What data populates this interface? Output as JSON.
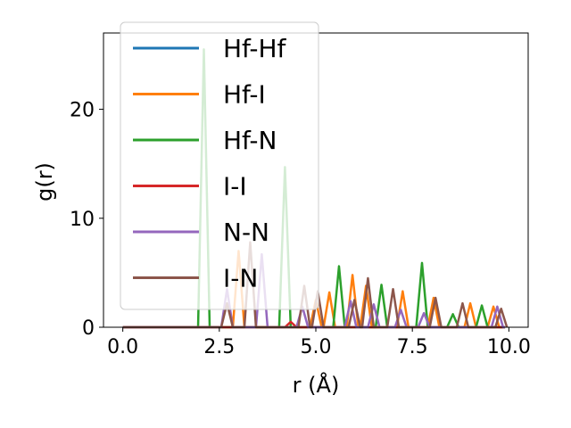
{
  "chart_data": {
    "type": "line",
    "title": "",
    "xlabel": "r (Å)",
    "ylabel": "g(r)",
    "xlim": [
      -0.5,
      10.5
    ],
    "ylim": [
      0,
      27
    ],
    "xticks": [
      0.0,
      2.5,
      5.0,
      7.5,
      10.0
    ],
    "xtick_labels": [
      "0.0",
      "2.5",
      "5.0",
      "7.5",
      "10.0"
    ],
    "yticks": [
      0,
      10,
      20
    ],
    "ytick_labels": [
      "0",
      "10",
      "20"
    ],
    "grid": false,
    "legend_position": "top-left",
    "series": [
      {
        "name": "Hf-Hf",
        "color": "#1f77b4",
        "points": [
          [
            0,
            0
          ],
          [
            9.9,
            0
          ]
        ]
      },
      {
        "name": "Hf-I",
        "color": "#ff7f0e",
        "points": [
          [
            0,
            0
          ],
          [
            2.85,
            0
          ],
          [
            3.0,
            7.0
          ],
          [
            3.15,
            0
          ],
          [
            4.85,
            0
          ],
          [
            5.0,
            2.5
          ],
          [
            5.15,
            0
          ],
          [
            5.2,
            0
          ],
          [
            5.35,
            3.2
          ],
          [
            5.5,
            0
          ],
          [
            5.8,
            0
          ],
          [
            5.95,
            4.8
          ],
          [
            6.1,
            0
          ],
          [
            6.15,
            0
          ],
          [
            6.3,
            3.8
          ],
          [
            6.45,
            0
          ],
          [
            7.1,
            0
          ],
          [
            7.25,
            3.3
          ],
          [
            7.4,
            0
          ],
          [
            7.9,
            0
          ],
          [
            8.05,
            2.7
          ],
          [
            8.2,
            0
          ],
          [
            8.85,
            0
          ],
          [
            9.0,
            2.2
          ],
          [
            9.15,
            0
          ],
          [
            9.45,
            0
          ],
          [
            9.6,
            1.9
          ],
          [
            9.75,
            0
          ],
          [
            9.9,
            0
          ]
        ]
      },
      {
        "name": "Hf-N",
        "color": "#2ca02c",
        "points": [
          [
            0,
            0
          ],
          [
            1.95,
            0
          ],
          [
            2.1,
            25.5
          ],
          [
            2.25,
            0
          ],
          [
            4.05,
            0
          ],
          [
            4.2,
            14.7
          ],
          [
            4.35,
            0
          ],
          [
            5.45,
            0
          ],
          [
            5.6,
            5.6
          ],
          [
            5.75,
            0
          ],
          [
            6.55,
            0
          ],
          [
            6.7,
            3.9
          ],
          [
            6.85,
            0
          ],
          [
            7.6,
            0
          ],
          [
            7.75,
            5.9
          ],
          [
            7.9,
            0
          ],
          [
            8.4,
            0
          ],
          [
            8.55,
            1.2
          ],
          [
            8.7,
            0
          ],
          [
            9.15,
            0
          ],
          [
            9.3,
            2.0
          ],
          [
            9.45,
            0
          ],
          [
            9.9,
            0
          ]
        ]
      },
      {
        "name": "I-I",
        "color": "#d62728",
        "points": [
          [
            0,
            0
          ],
          [
            4.2,
            0
          ],
          [
            4.35,
            0.5
          ],
          [
            4.5,
            0
          ],
          [
            9.9,
            0
          ]
        ]
      },
      {
        "name": "N-N",
        "color": "#9467bd",
        "points": [
          [
            0,
            0
          ],
          [
            2.55,
            0
          ],
          [
            2.7,
            3.5
          ],
          [
            2.85,
            0
          ],
          [
            3.45,
            0
          ],
          [
            3.6,
            6.7
          ],
          [
            3.75,
            0
          ],
          [
            4.5,
            0
          ],
          [
            4.65,
            1.9
          ],
          [
            4.8,
            0
          ],
          [
            5.75,
            0
          ],
          [
            5.9,
            2.4
          ],
          [
            6.05,
            0
          ],
          [
            6.35,
            0
          ],
          [
            6.5,
            2.1
          ],
          [
            6.65,
            0
          ],
          [
            7.05,
            0
          ],
          [
            7.2,
            1.6
          ],
          [
            7.35,
            0
          ],
          [
            7.65,
            0
          ],
          [
            7.8,
            1.3
          ],
          [
            7.95,
            0
          ],
          [
            9.55,
            0
          ],
          [
            9.7,
            1.9
          ],
          [
            9.85,
            0
          ],
          [
            9.9,
            0
          ]
        ]
      },
      {
        "name": "I-N",
        "color": "#8c564b",
        "points": [
          [
            0,
            0
          ],
          [
            2.55,
            0
          ],
          [
            2.7,
            2.2
          ],
          [
            2.85,
            0
          ],
          [
            3.15,
            0
          ],
          [
            3.3,
            7.8
          ],
          [
            3.45,
            0
          ],
          [
            4.55,
            0
          ],
          [
            4.7,
            3.8
          ],
          [
            4.85,
            0
          ],
          [
            4.9,
            0
          ],
          [
            5.05,
            3.3
          ],
          [
            5.2,
            0
          ],
          [
            5.85,
            0
          ],
          [
            6.0,
            2.5
          ],
          [
            6.15,
            0
          ],
          [
            6.2,
            0
          ],
          [
            6.35,
            4.5
          ],
          [
            6.5,
            0
          ],
          [
            6.85,
            0
          ],
          [
            7.0,
            3.5
          ],
          [
            7.15,
            0
          ],
          [
            7.95,
            0
          ],
          [
            8.1,
            2.7
          ],
          [
            8.25,
            0
          ],
          [
            8.65,
            0
          ],
          [
            8.8,
            2.2
          ],
          [
            8.95,
            0
          ],
          [
            9.65,
            0
          ],
          [
            9.8,
            1.7
          ],
          [
            9.95,
            0
          ]
        ]
      }
    ]
  }
}
